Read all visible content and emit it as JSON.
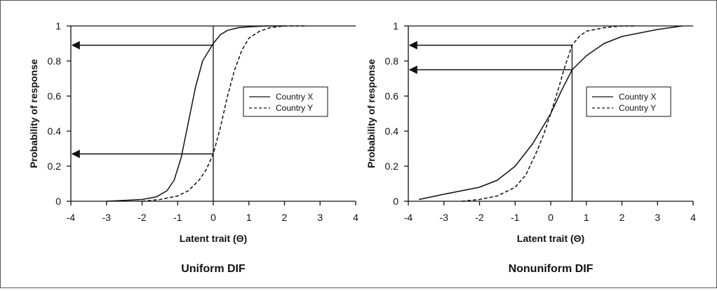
{
  "chart_data": [
    {
      "type": "line",
      "title": "Uniform DIF",
      "xlabel": "Latent trait (Θ)",
      "ylabel": "Probability of response",
      "xlim": [
        -4,
        4
      ],
      "ylim": [
        0,
        1
      ],
      "xticks": [
        "-4",
        "-3",
        "-2",
        "-1",
        "0",
        "1",
        "2",
        "3",
        "4"
      ],
      "yticks": [
        "0",
        "0.2",
        "0.4",
        "0.6",
        "0.8",
        "1"
      ],
      "grid": false,
      "legend_position": "right",
      "series": [
        {
          "name": "Country X",
          "line_style": "solid",
          "color": "#111111",
          "x": [
            -3,
            -2.5,
            -2,
            -1.6,
            -1.3,
            -1.1,
            -0.9,
            -0.7,
            -0.5,
            -0.3,
            -0.15,
            0,
            0.2,
            0.4,
            0.7,
            1,
            1.5,
            2
          ],
          "y": [
            0.0,
            0.005,
            0.01,
            0.025,
            0.06,
            0.12,
            0.25,
            0.45,
            0.65,
            0.8,
            0.85,
            0.9,
            0.95,
            0.975,
            0.99,
            0.995,
            1.0,
            1.0
          ]
        },
        {
          "name": "Country Y",
          "line_style": "dashed",
          "color": "#111111",
          "x": [
            -2,
            -1.5,
            -1,
            -0.7,
            -0.4,
            -0.2,
            0,
            0.2,
            0.4,
            0.6,
            0.8,
            1,
            1.3,
            1.6,
            2,
            2.6
          ],
          "y": [
            0.0,
            0.01,
            0.03,
            0.06,
            0.12,
            0.18,
            0.27,
            0.42,
            0.6,
            0.75,
            0.86,
            0.93,
            0.97,
            0.99,
            1.0,
            1.0
          ]
        }
      ],
      "reference_lines": {
        "vertical": [
          {
            "x": 0,
            "y_from": 0,
            "y_to": 1
          }
        ],
        "arrows": [
          {
            "y": 0.89,
            "x_from": 0,
            "x_to": -4
          },
          {
            "y": 0.27,
            "x_from": 0,
            "x_to": -4
          }
        ]
      }
    },
    {
      "type": "line",
      "title": "Nonuniform DIF",
      "xlabel": "Latent trait (Θ)",
      "ylabel": "Probability of response",
      "xlim": [
        -4,
        4
      ],
      "ylim": [
        0,
        1
      ],
      "xticks": [
        "-4",
        "-3",
        "-2",
        "-1",
        "0",
        "1",
        "2",
        "3",
        "4"
      ],
      "yticks": [
        "0",
        "0.2",
        "0.4",
        "0.6",
        "0.8",
        "1"
      ],
      "grid": false,
      "legend_position": "right",
      "series": [
        {
          "name": "Country X",
          "line_style": "solid",
          "color": "#111111",
          "x": [
            -3.7,
            -3,
            -2,
            -1.5,
            -1,
            -0.5,
            0,
            0.3,
            0.6,
            1,
            1.5,
            2,
            3,
            3.7
          ],
          "y": [
            0.01,
            0.04,
            0.08,
            0.12,
            0.2,
            0.33,
            0.5,
            0.63,
            0.75,
            0.83,
            0.9,
            0.94,
            0.98,
            1.0
          ]
        },
        {
          "name": "Country Y",
          "line_style": "dashed",
          "color": "#111111",
          "x": [
            -2.5,
            -2,
            -1.5,
            -1,
            -0.7,
            -0.4,
            -0.2,
            0,
            0.2,
            0.4,
            0.6,
            0.8,
            1,
            1.5,
            2,
            2.4
          ],
          "y": [
            0.0,
            0.01,
            0.03,
            0.08,
            0.15,
            0.28,
            0.38,
            0.5,
            0.63,
            0.77,
            0.89,
            0.94,
            0.97,
            0.99,
            1.0,
            1.0
          ]
        }
      ],
      "reference_lines": {
        "vertical": [
          {
            "x": 0.6,
            "y_from": 0,
            "y_to": 0.89
          }
        ],
        "arrows": [
          {
            "y": 0.89,
            "x_from": 0.6,
            "x_to": -4
          },
          {
            "y": 0.75,
            "x_from": 0.6,
            "x_to": -4
          }
        ]
      }
    }
  ]
}
